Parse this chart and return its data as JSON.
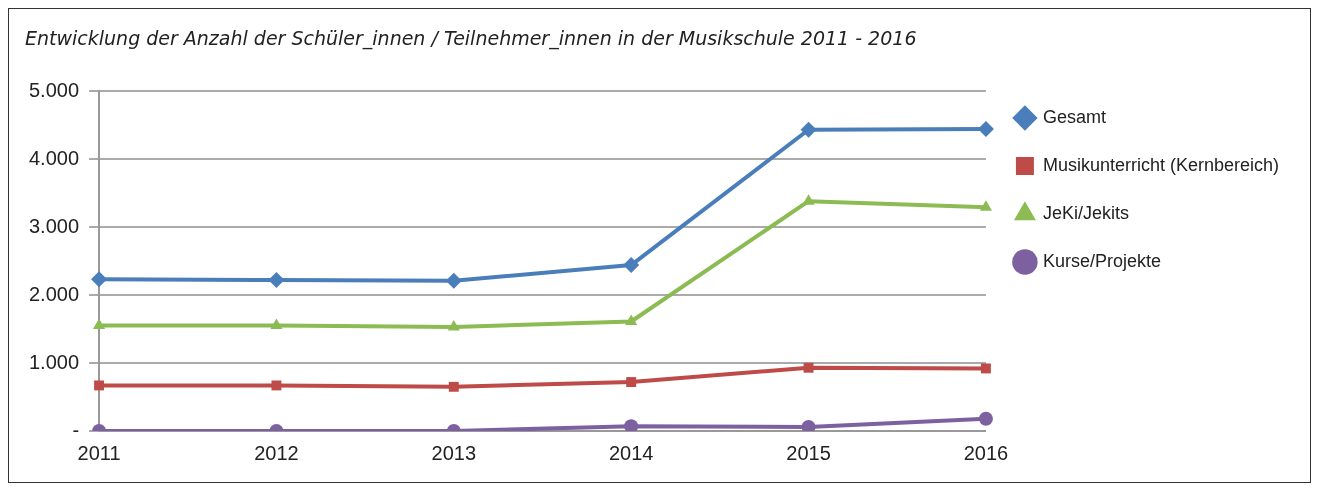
{
  "chart_data": {
    "type": "line",
    "title": "Entwicklung der Anzahl der Schüler_innen / Teilnehmer_innen in der Musikschule   2011 - 2016",
    "categories": [
      "2011",
      "2012",
      "2013",
      "2014",
      "2015",
      "2016"
    ],
    "series": [
      {
        "name": "Gesamt",
        "color": "#4a7ebb",
        "marker": "diamond",
        "values": [
          2230,
          2220,
          2210,
          2440,
          4430,
          4440
        ]
      },
      {
        "name": "Musikunterricht (Kernbereich)",
        "color": "#be4b48",
        "marker": "square",
        "values": [
          670,
          670,
          650,
          720,
          930,
          920
        ]
      },
      {
        "name": "JeKi/Jekits",
        "color": "#8cbb54",
        "marker": "triangle",
        "values": [
          1550,
          1550,
          1530,
          1610,
          3380,
          3290
        ]
      },
      {
        "name": "Kurse/Projekte",
        "color": "#7d60a0",
        "marker": "circle",
        "values": [
          0,
          0,
          0,
          70,
          60,
          180
        ]
      }
    ],
    "ylim": [
      0,
      5000
    ],
    "yticks": [
      {
        "value": 0,
        "label": "-"
      },
      {
        "value": 1000,
        "label": "1.000"
      },
      {
        "value": 2000,
        "label": "2.000"
      },
      {
        "value": 3000,
        "label": "3.000"
      },
      {
        "value": 4000,
        "label": "4.000"
      },
      {
        "value": 5000,
        "label": "5.000"
      }
    ],
    "grid": "y",
    "legend": "right",
    "line_style": "solid"
  }
}
